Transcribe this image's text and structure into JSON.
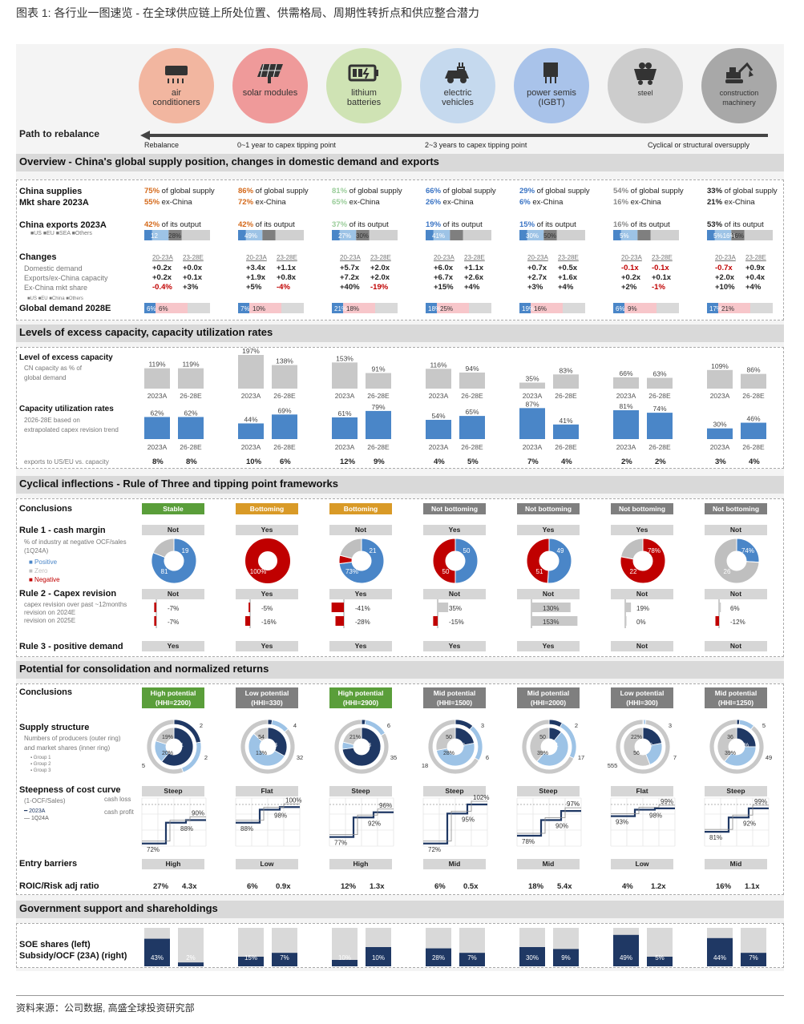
{
  "title": "图表 1: 各行业一图速览 - 在全球供应链上所处位置、供需格局、周期性转折点和供应整合潜力",
  "source": "资料来源：公司数据, 高盛全球投资研究部",
  "colors": {
    "blue": "#4a86c8",
    "red": "#c00000",
    "gray": "#bfbfbf",
    "green": "#5a9e3a",
    "orange": "#d99a27",
    "navy": "#1f3864",
    "lightblue": "#9dc3e6",
    "pink": "#f7c6ca"
  },
  "industries": [
    {
      "name": "air conditioners",
      "icon": "air-conditioner-icon",
      "bg": "#f2b6a0"
    },
    {
      "name": "solar modules",
      "icon": "solar-panel-icon",
      "bg": "#ef9a9a"
    },
    {
      "name": "lithium batteries",
      "icon": "battery-icon",
      "bg": "#cfe3b4"
    },
    {
      "name": "electric vehicles",
      "icon": "ev-car-icon",
      "bg": "#c5d9ee"
    },
    {
      "name": "power semis (IGBT)",
      "icon": "chip-icon",
      "bg": "#a9c3ea"
    },
    {
      "name": "steel",
      "icon": "mine-cart-icon",
      "bg": "#cccccc"
    },
    {
      "name": "construction machinery",
      "icon": "excavator-icon",
      "bg": "#a8a8a8"
    }
  ],
  "rebalance": {
    "title": "Path to rebalance",
    "labels": [
      "Rebalance",
      "0~1 year to capex tipping point",
      "2~3 years to capex tipping point",
      "Cyclical or structural oversupply"
    ]
  },
  "sections": {
    "overview": "Overview - China's global supply position, changes in domestic demand and exports",
    "excess": "Levels of excess capacity, capacity utilization rates",
    "cyclical": "Cyclical inflections - Rule of Three and tipping point frameworks",
    "consolidation": "Potential for consolidation and normalized returns",
    "government": "Government support and shareholdings"
  },
  "overview": {
    "supply_label": "China supplies",
    "mkt_label": "Mkt share 2023A",
    "exports_label": "China exports 2023A",
    "exports_legend": [
      "US",
      "EU",
      "SEA",
      "Others"
    ],
    "changes_label": "Changes",
    "changes_rows": [
      "Domestic demand",
      "Exports/ex-China capacity",
      "Ex-China mkt share"
    ],
    "changes_legend": [
      "US",
      "EU",
      "China",
      "Others"
    ],
    "global_label": "Global demand 2028E",
    "col_headers": [
      "20-23A",
      "23-28E"
    ],
    "suffix_supply": "of global supply",
    "suffix_mkt": "ex-China",
    "suffix_exports": "of its output",
    "supply": [
      "75%",
      "86%",
      "81%",
      "66%",
      "29%",
      "54%",
      "33%"
    ],
    "mkt": [
      "55%",
      "72%",
      "65%",
      "26%",
      "6%",
      "16%",
      "21%"
    ],
    "exports": [
      "42%",
      "42%",
      "37%",
      "19%",
      "15%",
      "16%",
      "53%"
    ],
    "export_bar_labels": [
      "12",
      "49%",
      "27%",
      "41%",
      "30%",
      "5%",
      "5%16%"
    ],
    "export_bar_labels2": [
      "28%",
      "",
      "30%",
      "",
      "50%",
      "",
      "16%"
    ],
    "changes": [
      [
        [
          "+0.2x",
          "+0.0x"
        ],
        [
          "+0.2x",
          "+0.1x"
        ],
        [
          "-0.4%",
          "+3%"
        ]
      ],
      [
        [
          "+3.4x",
          "+1.1x"
        ],
        [
          "+1.9x",
          "+0.8x"
        ],
        [
          "+5%",
          "-4%"
        ]
      ],
      [
        [
          "+5.7x",
          "+2.0x"
        ],
        [
          "+7.2x",
          "+2.0x"
        ],
        [
          "+40%",
          "-19%"
        ]
      ],
      [
        [
          "+6.0x",
          "+1.1x"
        ],
        [
          "+6.7x",
          "+2.6x"
        ],
        [
          "+15%",
          "+4%"
        ]
      ],
      [
        [
          "+0.7x",
          "+0.5x"
        ],
        [
          "+2.7x",
          "+1.6x"
        ],
        [
          "+3%",
          "+4%"
        ]
      ],
      [
        [
          "-0.1x",
          "-0.1x"
        ],
        [
          "+0.2x",
          "+0.1x"
        ],
        [
          "+2%",
          "-1%"
        ]
      ],
      [
        [
          "-0.7x",
          "+0.9x"
        ],
        [
          "+2.0x",
          "+0.4x"
        ],
        [
          "+10%",
          "+4%"
        ]
      ]
    ],
    "global_labels": [
      [
        "6%",
        "6%"
      ],
      [
        "7%",
        "10%"
      ],
      [
        "21%",
        "18%"
      ],
      [
        "18%",
        "25%"
      ],
      [
        "19%",
        "16%"
      ],
      [
        "6%",
        "9%"
      ],
      [
        "17%",
        "21%"
      ]
    ]
  },
  "excess": {
    "level_label": "Level of excess capacity",
    "level_sub": [
      "CN capacity as % of",
      "global demand"
    ],
    "util_label": "Capacity utilization rates",
    "util_sub": [
      "2026-28E based on",
      "extrapolated capex revision trend"
    ],
    "export_label": "exports to US/EU vs. capacity",
    "years": [
      "2023A",
      "26-28E"
    ],
    "excess_vals": [
      [
        119,
        119
      ],
      [
        197,
        138
      ],
      [
        153,
        91
      ],
      [
        116,
        94
      ],
      [
        35,
        83
      ],
      [
        66,
        63
      ],
      [
        109,
        86
      ]
    ],
    "util_vals": [
      [
        62,
        62
      ],
      [
        44,
        69
      ],
      [
        61,
        79
      ],
      [
        54,
        65
      ],
      [
        87,
        41
      ],
      [
        81,
        74
      ],
      [
        30,
        46
      ]
    ],
    "export_vals": [
      [
        "8%",
        "8%"
      ],
      [
        "10%",
        "6%"
      ],
      [
        "12%",
        "9%"
      ],
      [
        "4%",
        "5%"
      ],
      [
        "7%",
        "4%"
      ],
      [
        "2%",
        "2%"
      ],
      [
        "3%",
        "4%"
      ]
    ]
  },
  "cyclical": {
    "conclusions_label": "Conclusions",
    "conclusions": [
      "Stable",
      "Bottoming",
      "Bottoming",
      "Not bottoming",
      "Not bottoming",
      "Not bottoming",
      "Not bottoming"
    ],
    "rule1_label": "Rule 1 - cash margin",
    "rule1_sub": [
      "% of industry at negative OCF/sales",
      "(1Q24A)"
    ],
    "rule1_legend": [
      "Positive",
      "Zero",
      "Negative"
    ],
    "rule1": [
      "Not",
      "Yes",
      "Not",
      "Yes",
      "Yes",
      "Yes",
      "Not"
    ],
    "pies": [
      {
        "pos": 81,
        "zero": 19,
        "neg": 0,
        "labels": [
          "81",
          "19"
        ]
      },
      {
        "pos": 0,
        "zero": 0,
        "neg": 100,
        "labels": [
          "100%"
        ]
      },
      {
        "pos": 73,
        "zero": 21,
        "neg": 6,
        "labels": [
          "73%",
          "21"
        ]
      },
      {
        "pos": 50,
        "zero": 0,
        "neg": 50,
        "labels": [
          "50",
          "50"
        ]
      },
      {
        "pos": 51,
        "zero": 0,
        "neg": 49,
        "labels": [
          "51",
          "49"
        ]
      },
      {
        "pos": 0,
        "zero": 22,
        "neg": 78,
        "labels": [
          "22",
          "78%"
        ]
      },
      {
        "pos": 26,
        "zero": 74,
        "neg": 0,
        "labels": [
          "26",
          "74%"
        ]
      }
    ],
    "rule2_label": "Rule 2 - Capex revision",
    "rule2_sub": [
      "capex revision over past ~12months",
      "revision on 2024E",
      "revision on 2025E"
    ],
    "rule2": [
      "Not",
      "Yes",
      "Yes",
      "Not",
      "Not",
      "Not",
      "Not"
    ],
    "capex": [
      [
        "-7%",
        "-7%"
      ],
      [
        "-5%",
        "-16%"
      ],
      [
        "-41%",
        "-28%"
      ],
      [
        "35%",
        "-15%"
      ],
      [
        "130%",
        "153%"
      ],
      [
        "19%",
        "0%"
      ],
      [
        "6%",
        "-12%"
      ]
    ],
    "capex_vals": [
      [
        -7,
        -7
      ],
      [
        -5,
        -16
      ],
      [
        -41,
        -28
      ],
      [
        35,
        -15
      ],
      [
        130,
        153
      ],
      [
        19,
        0
      ],
      [
        6,
        -12
      ]
    ],
    "rule3_label": "Rule 3 - positive demand",
    "rule3": [
      "Yes",
      "Yes",
      "Yes",
      "Yes",
      "Yes",
      "Not",
      "Not"
    ]
  },
  "consolidation": {
    "conclusions_label": "Conclusions",
    "potential": [
      [
        "High potential",
        "(HHI=2200)"
      ],
      [
        "Low potential",
        "(HHI=330)"
      ],
      [
        "High potential",
        "(HHI=2900)"
      ],
      [
        "Mid potential",
        "(HHI=1500)"
      ],
      [
        "Mid potential",
        "(HHI=2000)"
      ],
      [
        "Low potential",
        "(HHI=300)"
      ],
      [
        "Mid potential",
        "(HHI=1250)"
      ]
    ],
    "supply_label": "Supply structure",
    "supply_sub": [
      "Numbers of producers (outer ring)",
      "and market shares (inner ring)"
    ],
    "supply_legend": [
      "Group 1",
      "Group 2",
      "Group 3"
    ],
    "donuts": [
      {
        "outer": [
          2,
          2,
          5
        ],
        "inner": [
          61,
          19,
          20
        ],
        "nums": [
          "2",
          "2",
          "5"
        ],
        "ilabels": [
          "61",
          "19%",
          "20%"
        ]
      },
      {
        "outer": [
          1,
          4,
          32
        ],
        "inner": [
          33,
          54,
          13
        ],
        "nums": [
          "4",
          "32"
        ],
        "ilabels": [
          "33",
          "54",
          "13%"
        ]
      },
      {
        "outer": [
          1,
          6,
          35
        ],
        "inner": [
          73,
          6,
          21
        ],
        "nums": [
          "6",
          "35"
        ],
        "ilabels": [
          "73",
          "21%"
        ]
      },
      {
        "outer": [
          3,
          6,
          18
        ],
        "inner": [
          22,
          50,
          28
        ],
        "nums": [
          "3",
          "6",
          "18"
        ],
        "ilabels": [
          "22",
          "50",
          "28%"
        ]
      },
      {
        "outer": [
          2,
          6,
          17
        ],
        "inner": [
          11,
          50,
          39
        ],
        "nums": [
          "2",
          "17"
        ],
        "ilabels": [
          "11",
          "50",
          "39%"
        ]
      },
      {
        "outer": [
          3,
          7,
          555
        ],
        "inner": [
          22,
          22,
          56
        ],
        "nums": [
          "3",
          "7",
          "555"
        ],
        "ilabels": [
          "22",
          "22%",
          "56"
        ]
      },
      {
        "outer": [
          1,
          5,
          49
        ],
        "inner": [
          25,
          36,
          39
        ],
        "nums": [
          "5",
          "49"
        ],
        "ilabels": [
          "25%",
          "36",
          "39%"
        ]
      }
    ],
    "cost_label": "Steepness of cost curve",
    "cost_sub": "(1-OCF/Sales)",
    "cost_legend": [
      "2023A",
      "1Q24A"
    ],
    "cost_annot": [
      "cash loss",
      "cash profit"
    ],
    "steepness": [
      "Steep",
      "Flat",
      "Steep",
      "Steep",
      "Steep",
      "Flat",
      "Steep"
    ],
    "cost_vals": [
      [
        "90%",
        "88%",
        "72%"
      ],
      [
        "100%",
        "98%",
        "88%"
      ],
      [
        "96%",
        "92%",
        "77%"
      ],
      [
        "102%",
        "95%",
        "72%"
      ],
      [
        "97%",
        "90%",
        "78%"
      ],
      [
        "99%",
        "98%",
        "93%"
      ],
      [
        "99%",
        "92%",
        "81%"
      ]
    ],
    "entry_label": "Entry barriers",
    "entry": [
      "High",
      "Low",
      "High",
      "Mid",
      "Mid",
      "Low",
      "Mid"
    ],
    "roic_label": "ROIC/Risk adj ratio",
    "roic": [
      [
        "27%",
        "4.3x"
      ],
      [
        "6%",
        "0.9x"
      ],
      [
        "12%",
        "1.3x"
      ],
      [
        "6%",
        "0.5x"
      ],
      [
        "18%",
        "5.4x"
      ],
      [
        "4%",
        "1.2x"
      ],
      [
        "16%",
        "1.1x"
      ]
    ]
  },
  "government": {
    "label1": "SOE shares (left)",
    "label2": "Subsidy/OCF (23A) (right)",
    "soe": [
      43,
      15,
      10,
      28,
      30,
      49,
      44
    ],
    "subsidy": [
      2,
      7,
      10,
      7,
      9,
      5,
      7
    ],
    "soe_labels": [
      "43%",
      "15%",
      "10%",
      "28%",
      "30%",
      "49%",
      "44%"
    ],
    "subsidy_labels": [
      "2%",
      "7%",
      "10%",
      "7%",
      "9%",
      "5%",
      "7%"
    ]
  },
  "chart_data": [
    {
      "type": "bar",
      "title": "Level of excess capacity",
      "categories": [
        "air conditioners",
        "solar modules",
        "lithium batteries",
        "electric vehicles",
        "power semis (IGBT)",
        "steel",
        "construction machinery"
      ],
      "series": [
        {
          "name": "2023A",
          "values": [
            119,
            197,
            153,
            116,
            35,
            66,
            109
          ]
        },
        {
          "name": "26-28E",
          "values": [
            119,
            138,
            91,
            94,
            83,
            63,
            86
          ]
        }
      ]
    },
    {
      "type": "bar",
      "title": "Capacity utilization rates",
      "categories": [
        "air conditioners",
        "solar modules",
        "lithium batteries",
        "electric vehicles",
        "power semis (IGBT)",
        "steel",
        "construction machinery"
      ],
      "series": [
        {
          "name": "2023A",
          "values": [
            62,
            44,
            61,
            54,
            87,
            81,
            30
          ]
        },
        {
          "name": "26-28E",
          "values": [
            62,
            69,
            79,
            65,
            41,
            74,
            46
          ]
        }
      ]
    },
    {
      "type": "bar",
      "title": "Government support and shareholdings",
      "categories": [
        "air conditioners",
        "solar modules",
        "lithium batteries",
        "electric vehicles",
        "power semis (IGBT)",
        "steel",
        "construction machinery"
      ],
      "series": [
        {
          "name": "SOE shares (left)",
          "values": [
            43,
            15,
            10,
            28,
            30,
            49,
            44
          ]
        },
        {
          "name": "Subsidy/OCF (23A) (right)",
          "values": [
            2,
            7,
            10,
            7,
            9,
            5,
            7
          ]
        }
      ]
    }
  ]
}
